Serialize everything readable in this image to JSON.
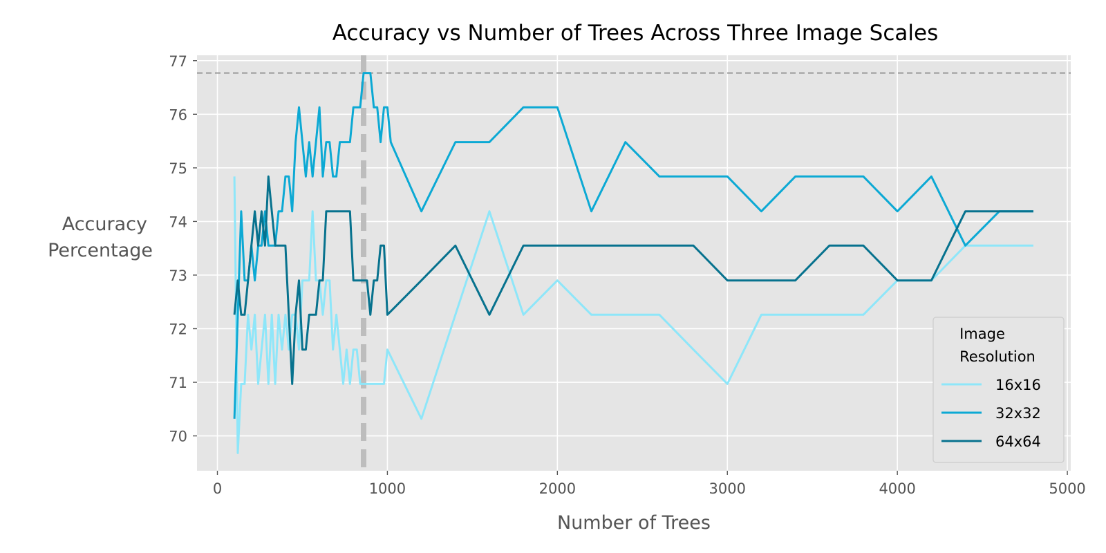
{
  "chart_data": {
    "type": "line",
    "title": "Accuracy vs Number of Trees Across Three Image Scales",
    "xlabel": "Number of Trees",
    "ylabel": [
      "Accuracy",
      "Percentage"
    ],
    "xlim": [
      -120,
      5020
    ],
    "ylim": [
      69.35,
      77.1
    ],
    "x_ticks": [
      0,
      1000,
      2000,
      3000,
      4000,
      5000
    ],
    "y_ticks": [
      70,
      71,
      72,
      73,
      74,
      75,
      76,
      77
    ],
    "grid": true,
    "legend": {
      "title": [
        "Image",
        "Resolution"
      ],
      "placement": "lower-right"
    },
    "reference_lines": {
      "horizontal_y": 76.77,
      "vertical_x": 860
    },
    "colors": {
      "background": "#e5e5e5",
      "grid": "#ffffff",
      "reference": "#999999",
      "vertical_reference": "#bdbdbd"
    },
    "series": [
      {
        "name": "16x16",
        "color": "#8ee6f9",
        "points": [
          [
            100,
            74.84
          ],
          [
            120,
            69.68
          ],
          [
            140,
            70.97
          ],
          [
            160,
            70.97
          ],
          [
            180,
            72.26
          ],
          [
            200,
            71.61
          ],
          [
            220,
            72.26
          ],
          [
            240,
            70.97
          ],
          [
            260,
            71.61
          ],
          [
            280,
            72.26
          ],
          [
            300,
            70.97
          ],
          [
            320,
            72.26
          ],
          [
            340,
            70.97
          ],
          [
            360,
            72.26
          ],
          [
            380,
            71.61
          ],
          [
            400,
            72.26
          ],
          [
            420,
            71.61
          ],
          [
            440,
            72.26
          ],
          [
            460,
            72.26
          ],
          [
            480,
            71.61
          ],
          [
            500,
            72.9
          ],
          [
            520,
            72.9
          ],
          [
            540,
            72.9
          ],
          [
            560,
            74.19
          ],
          [
            580,
            72.9
          ],
          [
            600,
            72.9
          ],
          [
            620,
            72.26
          ],
          [
            640,
            72.9
          ],
          [
            660,
            72.9
          ],
          [
            680,
            71.61
          ],
          [
            700,
            72.26
          ],
          [
            720,
            71.61
          ],
          [
            740,
            70.97
          ],
          [
            760,
            71.61
          ],
          [
            780,
            70.97
          ],
          [
            800,
            71.61
          ],
          [
            820,
            71.61
          ],
          [
            840,
            70.97
          ],
          [
            860,
            70.97
          ],
          [
            880,
            70.97
          ],
          [
            900,
            70.97
          ],
          [
            920,
            70.97
          ],
          [
            940,
            70.97
          ],
          [
            960,
            70.97
          ],
          [
            980,
            70.97
          ],
          [
            1000,
            71.61
          ],
          [
            1200,
            70.32
          ],
          [
            1400,
            72.26
          ],
          [
            1600,
            74.19
          ],
          [
            1800,
            72.26
          ],
          [
            2000,
            72.9
          ],
          [
            2200,
            72.26
          ],
          [
            2400,
            72.26
          ],
          [
            2600,
            72.26
          ],
          [
            2800,
            71.61
          ],
          [
            3000,
            70.97
          ],
          [
            3200,
            72.26
          ],
          [
            3400,
            72.26
          ],
          [
            3600,
            72.26
          ],
          [
            3800,
            72.26
          ],
          [
            4000,
            72.9
          ],
          [
            4200,
            72.9
          ],
          [
            4400,
            73.55
          ],
          [
            4600,
            73.55
          ],
          [
            4800,
            73.55
          ]
        ]
      },
      {
        "name": "32x32",
        "color": "#0ca9d4",
        "points": [
          [
            100,
            70.32
          ],
          [
            120,
            72.26
          ],
          [
            140,
            74.19
          ],
          [
            160,
            72.9
          ],
          [
            180,
            72.9
          ],
          [
            200,
            73.55
          ],
          [
            220,
            72.9
          ],
          [
            240,
            73.55
          ],
          [
            260,
            73.55
          ],
          [
            280,
            74.19
          ],
          [
            300,
            73.55
          ],
          [
            320,
            73.55
          ],
          [
            340,
            73.55
          ],
          [
            360,
            74.19
          ],
          [
            380,
            74.19
          ],
          [
            400,
            74.84
          ],
          [
            420,
            74.84
          ],
          [
            440,
            74.19
          ],
          [
            460,
            75.48
          ],
          [
            480,
            76.13
          ],
          [
            500,
            75.48
          ],
          [
            520,
            74.84
          ],
          [
            540,
            75.48
          ],
          [
            560,
            74.84
          ],
          [
            580,
            75.48
          ],
          [
            600,
            76.13
          ],
          [
            620,
            74.84
          ],
          [
            640,
            75.48
          ],
          [
            660,
            75.48
          ],
          [
            680,
            74.84
          ],
          [
            700,
            74.84
          ],
          [
            720,
            75.48
          ],
          [
            740,
            75.48
          ],
          [
            760,
            75.48
          ],
          [
            780,
            75.48
          ],
          [
            800,
            76.13
          ],
          [
            820,
            76.13
          ],
          [
            840,
            76.13
          ],
          [
            860,
            76.77
          ],
          [
            880,
            76.77
          ],
          [
            900,
            76.77
          ],
          [
            920,
            76.13
          ],
          [
            940,
            76.13
          ],
          [
            960,
            75.48
          ],
          [
            980,
            76.13
          ],
          [
            1000,
            76.13
          ],
          [
            1020,
            75.48
          ],
          [
            1200,
            74.19
          ],
          [
            1400,
            75.48
          ],
          [
            1600,
            75.48
          ],
          [
            1800,
            76.13
          ],
          [
            2000,
            76.13
          ],
          [
            2200,
            74.19
          ],
          [
            2400,
            75.48
          ],
          [
            2600,
            74.84
          ],
          [
            2800,
            74.84
          ],
          [
            3000,
            74.84
          ],
          [
            3200,
            74.19
          ],
          [
            3400,
            74.84
          ],
          [
            3600,
            74.84
          ],
          [
            3800,
            74.84
          ],
          [
            4000,
            74.19
          ],
          [
            4200,
            74.84
          ],
          [
            4400,
            73.55
          ],
          [
            4600,
            74.19
          ],
          [
            4800,
            74.19
          ]
        ]
      },
      {
        "name": "64x64",
        "color": "#07728e",
        "points": [
          [
            100,
            72.26
          ],
          [
            120,
            72.9
          ],
          [
            140,
            72.26
          ],
          [
            160,
            72.26
          ],
          [
            180,
            72.9
          ],
          [
            200,
            73.55
          ],
          [
            220,
            74.19
          ],
          [
            240,
            73.55
          ],
          [
            260,
            74.19
          ],
          [
            280,
            73.55
          ],
          [
            300,
            74.84
          ],
          [
            320,
            74.19
          ],
          [
            340,
            73.55
          ],
          [
            360,
            73.55
          ],
          [
            380,
            73.55
          ],
          [
            400,
            73.55
          ],
          [
            420,
            72.26
          ],
          [
            440,
            70.97
          ],
          [
            460,
            72.26
          ],
          [
            480,
            72.9
          ],
          [
            500,
            71.61
          ],
          [
            520,
            71.61
          ],
          [
            540,
            72.26
          ],
          [
            560,
            72.26
          ],
          [
            580,
            72.26
          ],
          [
            600,
            72.9
          ],
          [
            620,
            72.9
          ],
          [
            640,
            74.19
          ],
          [
            660,
            74.19
          ],
          [
            680,
            74.19
          ],
          [
            700,
            74.19
          ],
          [
            720,
            74.19
          ],
          [
            740,
            74.19
          ],
          [
            760,
            74.19
          ],
          [
            780,
            74.19
          ],
          [
            800,
            72.9
          ],
          [
            820,
            72.9
          ],
          [
            840,
            72.9
          ],
          [
            860,
            72.9
          ],
          [
            880,
            72.9
          ],
          [
            900,
            72.26
          ],
          [
            920,
            72.9
          ],
          [
            940,
            72.9
          ],
          [
            960,
            73.55
          ],
          [
            980,
            73.55
          ],
          [
            1000,
            72.26
          ],
          [
            1200,
            72.9
          ],
          [
            1400,
            73.55
          ],
          [
            1600,
            72.26
          ],
          [
            1800,
            73.55
          ],
          [
            2000,
            73.55
          ],
          [
            2200,
            73.55
          ],
          [
            2400,
            73.55
          ],
          [
            2600,
            73.55
          ],
          [
            2800,
            73.55
          ],
          [
            3000,
            72.9
          ],
          [
            3200,
            72.9
          ],
          [
            3400,
            72.9
          ],
          [
            3600,
            73.55
          ],
          [
            3800,
            73.55
          ],
          [
            4000,
            72.9
          ],
          [
            4200,
            72.9
          ],
          [
            4400,
            74.19
          ],
          [
            4600,
            74.19
          ],
          [
            4800,
            74.19
          ]
        ]
      }
    ]
  }
}
